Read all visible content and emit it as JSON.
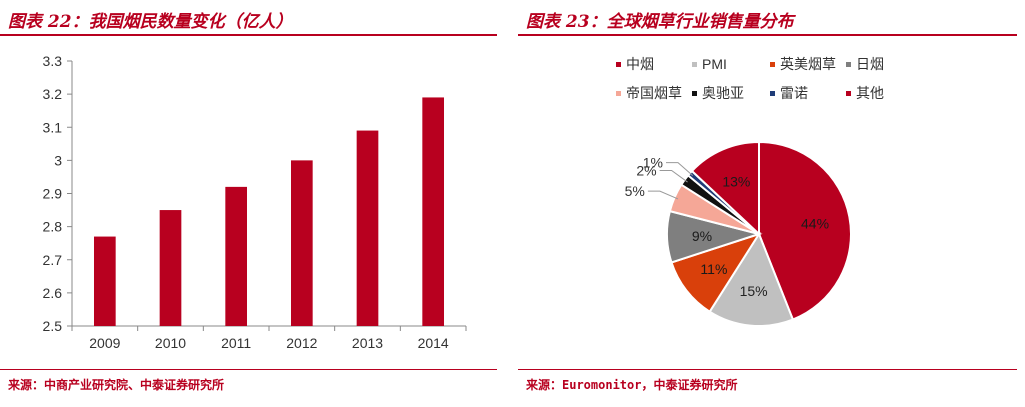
{
  "left": {
    "title": "图表 22：我国烟民数量变化（亿人）",
    "source": "来源：中商产业研究院、中泰证券研究所"
  },
  "right": {
    "title": "图表 23：全球烟草行业销售量分布",
    "source": "来源：Euromonitor，中泰证券研究所"
  },
  "colors": {
    "accent": "#b8001f",
    "bar": "#b8001f",
    "axis": "#888888",
    "text": "#333333"
  },
  "chart_data": [
    {
      "type": "bar",
      "categories": [
        "2009",
        "2010",
        "2011",
        "2012",
        "2013",
        "2014"
      ],
      "values": [
        2.77,
        2.85,
        2.92,
        3.0,
        3.09,
        3.19
      ],
      "title": "我国烟民数量变化（亿人）",
      "xlabel": "",
      "ylabel": "",
      "ylim": [
        2.5,
        3.3
      ],
      "yticks": [
        "2.5",
        "2.6",
        "2.7",
        "2.8",
        "2.9",
        "3",
        "3.1",
        "3.2",
        "3.3"
      ],
      "grid": false
    },
    {
      "type": "pie",
      "title": "全球烟草行业销售量分布",
      "legend_position": "top",
      "slices": [
        {
          "label": "中烟",
          "value": 44,
          "text": "44%",
          "color": "#b8001f"
        },
        {
          "label": "PMI",
          "value": 15,
          "text": "15%",
          "color": "#c0c0c0"
        },
        {
          "label": "英美烟草",
          "value": 11,
          "text": "11%",
          "color": "#d9400b"
        },
        {
          "label": "日烟",
          "value": 9,
          "text": "9%",
          "color": "#7f7f7f"
        },
        {
          "label": "帝国烟草",
          "value": 5,
          "text": "5%",
          "color": "#f5a797"
        },
        {
          "label": "奥驰亚",
          "value": 2,
          "text": "2%",
          "color": "#111111"
        },
        {
          "label": "雷诺",
          "value": 1,
          "text": "1%",
          "color": "#1f3c78"
        },
        {
          "label": "其他",
          "value": 13,
          "text": "13%",
          "color": "#b8001f"
        }
      ]
    }
  ]
}
